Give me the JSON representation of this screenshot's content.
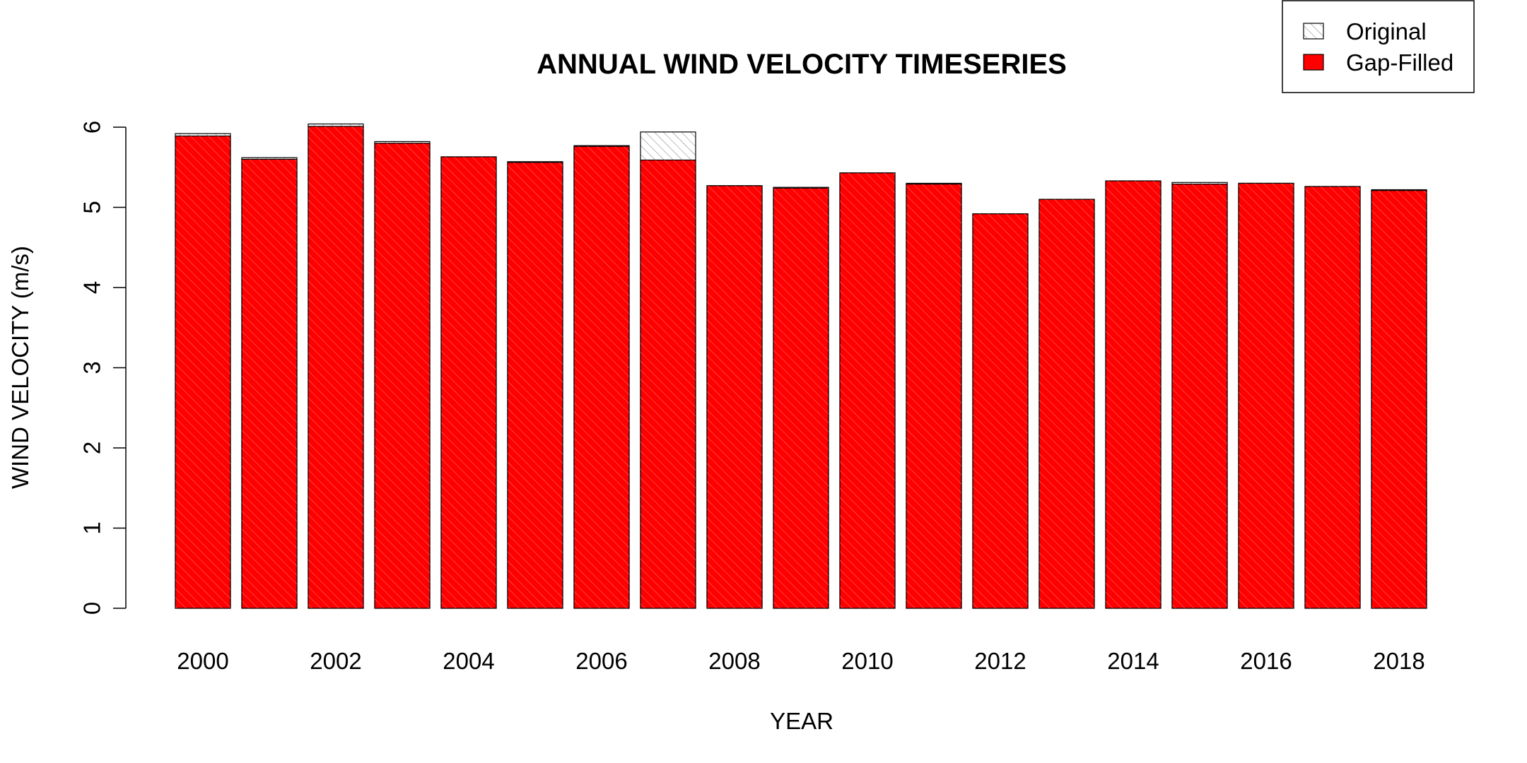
{
  "chart_data": {
    "type": "bar",
    "title": "ANNUAL WIND VELOCITY TIMESERIES",
    "xlabel": "YEAR",
    "ylabel": "WIND VELOCITY (m/s)",
    "ylim": [
      0,
      6
    ],
    "yticks": [
      "0",
      "1",
      "2",
      "3",
      "4",
      "5",
      "6"
    ],
    "categories": [
      "2000",
      "2001",
      "2002",
      "2003",
      "2004",
      "2005",
      "2006",
      "2007",
      "2008",
      "2009",
      "2010",
      "2011",
      "2012",
      "2013",
      "2014",
      "2015",
      "2016",
      "2017",
      "2018"
    ],
    "x_tick_labels": [
      "2000",
      "2002",
      "2004",
      "2006",
      "2008",
      "2010",
      "2012",
      "2014",
      "2016",
      "2018"
    ],
    "series": [
      {
        "name": "Original",
        "style": "hatched",
        "values": [
          5.92,
          5.62,
          6.04,
          5.82,
          5.63,
          5.57,
          5.77,
          5.94,
          5.27,
          5.25,
          5.43,
          5.3,
          4.92,
          5.1,
          5.33,
          5.31,
          5.3,
          5.26,
          5.22
        ]
      },
      {
        "name": "Gap-Filled",
        "style": "solid",
        "color": "#ff0000",
        "values": [
          5.89,
          5.6,
          6.01,
          5.8,
          5.63,
          5.56,
          5.76,
          5.59,
          5.27,
          5.24,
          5.43,
          5.29,
          4.92,
          5.1,
          5.33,
          5.29,
          5.3,
          5.26,
          5.21
        ]
      }
    ],
    "legend": {
      "position": "top-right",
      "entries": [
        "Original",
        "Gap-Filled"
      ]
    }
  }
}
